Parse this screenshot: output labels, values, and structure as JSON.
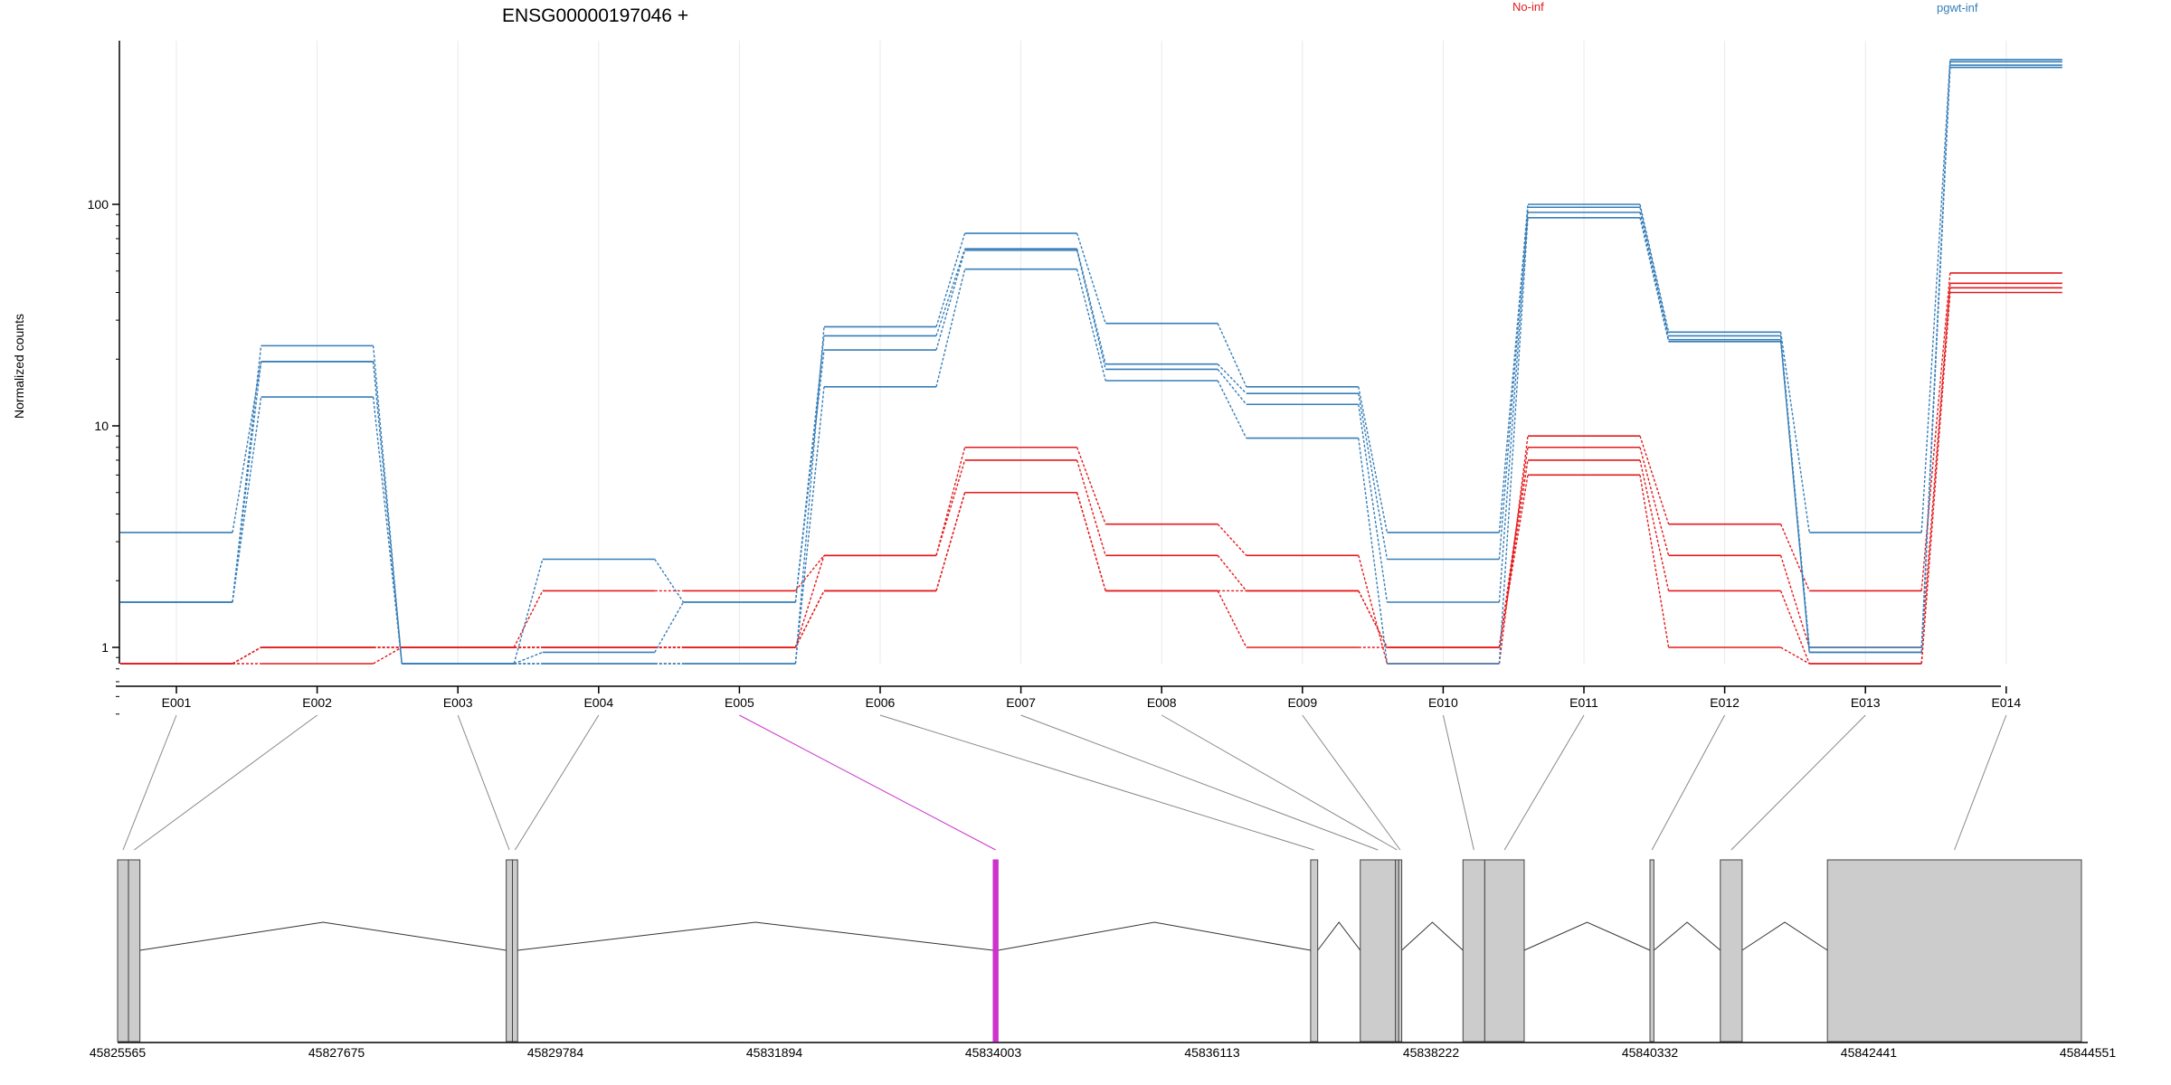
{
  "chart_data": {
    "type": "line",
    "title": "ENSG00000197046 +",
    "ylabel": "Normalized counts",
    "y_scale": "log",
    "y_ticks": [
      1,
      10,
      100
    ],
    "y_floor": 0.5,
    "categories": [
      "E001",
      "E002",
      "E003",
      "E004",
      "E005",
      "E006",
      "E007",
      "E008",
      "E009",
      "E010",
      "E011",
      "E012",
      "E013",
      "E014"
    ],
    "groups": [
      {
        "name": "No-inf",
        "color": "#e41a1c"
      },
      {
        "name": "pgwt-inf",
        "color": "#377eb8"
      }
    ],
    "series": [
      {
        "group": "No-inf",
        "values": [
          0.5,
          1,
          1,
          1,
          1,
          1.8,
          5,
          1.8,
          1,
          1,
          6,
          1,
          0.5,
          40
        ]
      },
      {
        "group": "No-inf",
        "values": [
          0.5,
          1,
          1,
          1,
          1,
          1.8,
          5,
          1.8,
          1.8,
          1,
          7,
          1.8,
          0.5,
          42
        ]
      },
      {
        "group": "No-inf",
        "values": [
          0.5,
          1,
          1,
          1.8,
          1.8,
          2.6,
          7,
          2.6,
          1.8,
          1,
          8,
          2.6,
          1,
          44
        ]
      },
      {
        "group": "No-inf",
        "values": [
          0.5,
          0.5,
          1,
          1,
          1,
          2.6,
          8,
          3.6,
          2.6,
          0.5,
          9,
          3.6,
          1.8,
          49
        ]
      },
      {
        "group": "pgwt-inf",
        "values": [
          1.6,
          13.5,
          0.5,
          0.5,
          0.5,
          15,
          51,
          16,
          8.8,
          0.5,
          87,
          24,
          0.95,
          415
        ]
      },
      {
        "group": "pgwt-inf",
        "values": [
          1.6,
          19.5,
          0.5,
          0.95,
          1.6,
          22,
          62,
          18,
          12.5,
          1.6,
          92,
          24.5,
          0.95,
          425
        ]
      },
      {
        "group": "pgwt-inf",
        "values": [
          3.3,
          19.5,
          0.5,
          2.5,
          1.6,
          25.5,
          63,
          19,
          14,
          2.5,
          97,
          25.5,
          1,
          440
        ]
      },
      {
        "group": "pgwt-inf",
        "values": [
          1.6,
          23,
          0.5,
          0.5,
          0.5,
          28,
          74,
          29,
          15,
          3.3,
          100,
          26.5,
          3.3,
          450
        ]
      }
    ],
    "gene_model": {
      "coordinate_ticks": [
        "45825565",
        "45827675",
        "45829784",
        "45831894",
        "45834003",
        "45836113",
        "45838222",
        "45840332",
        "45842441",
        "45844551"
      ],
      "genomic_start": 45825565,
      "genomic_end": 45844551,
      "highlighted_exon": "E005",
      "highlight_color": "#cc33cc",
      "exon_color": "#cccccc",
      "exons": [
        {
          "id": "E001",
          "start": 45825565,
          "end": 45825670
        },
        {
          "id": "E002",
          "start": 45825670,
          "end": 45825780
        },
        {
          "id": "E003",
          "start": 45829310,
          "end": 45829370
        },
        {
          "id": "E004",
          "start": 45829370,
          "end": 45829420
        },
        {
          "id": "E005",
          "start": 45834003,
          "end": 45834050
        },
        {
          "id": "E006",
          "start": 45837062,
          "end": 45837130
        },
        {
          "id": "E007",
          "start": 45837540,
          "end": 45837880
        },
        {
          "id": "E008",
          "start": 45837880,
          "end": 45837910
        },
        {
          "id": "E009",
          "start": 45837910,
          "end": 45837940
        },
        {
          "id": "E010",
          "start": 45838530,
          "end": 45838740
        },
        {
          "id": "E011",
          "start": 45838740,
          "end": 45839120
        },
        {
          "id": "E012",
          "start": 45840332,
          "end": 45840370
        },
        {
          "id": "E013",
          "start": 45841010,
          "end": 45841220
        },
        {
          "id": "E014",
          "start": 45842042,
          "end": 45844490
        }
      ]
    }
  }
}
